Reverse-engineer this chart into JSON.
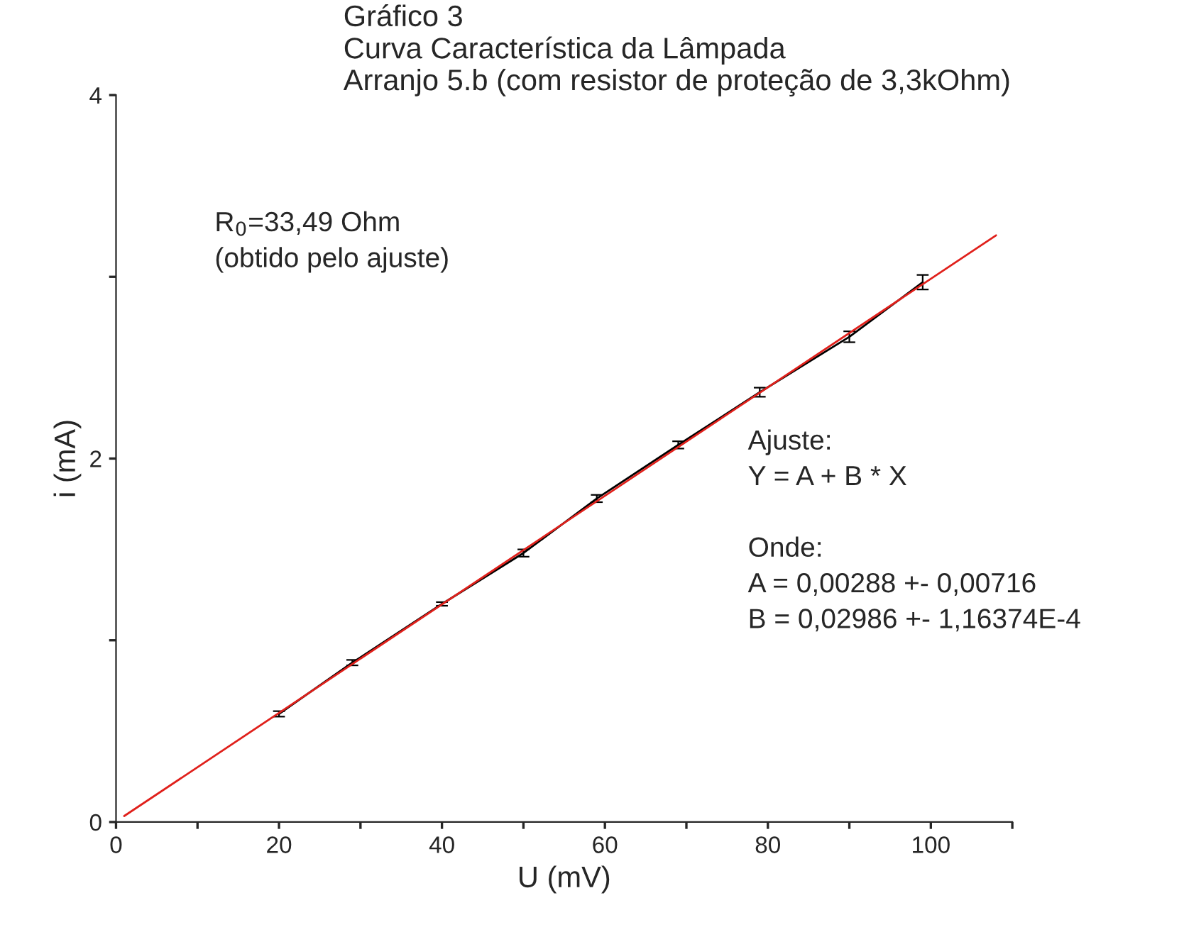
{
  "chart_data": {
    "type": "line",
    "title": "Gráfico 3\nCurva Característica da Lâmpada\nArranjo 5.b (com resistor de proteção de 3,3kOhm)",
    "xlabel": "U (mV)",
    "ylabel": "i (mA)",
    "series": [
      {
        "color": "#000000",
        "x": [
          20,
          29,
          40,
          50,
          59,
          69,
          79,
          90,
          99
        ],
        "values": [
          0.595,
          0.877,
          1.2,
          1.48,
          1.78,
          2.075,
          2.365,
          2.67,
          2.97
        ],
        "errors": [
          0.015,
          0.015,
          0.01,
          0.02,
          0.02,
          0.02,
          0.025,
          0.03,
          0.04
        ]
      },
      {
        "color": "#e0201b",
        "x": [
          1,
          108
        ],
        "values": [
          0.033,
          3.228
        ]
      }
    ],
    "xlim": [
      0,
      110
    ],
    "ylim": [
      0,
      4
    ],
    "xticks": [
      0,
      {
        "value": 10,
        "label": null
      },
      20,
      {
        "value": 30,
        "label": null
      },
      40,
      {
        "value": 50,
        "label": null
      },
      60,
      {
        "value": 70,
        "label": null
      },
      80,
      {
        "value": 90,
        "label": null
      },
      100,
      {
        "value": 110,
        "label": null
      }
    ],
    "yticks": [
      0,
      {
        "value": 1,
        "label": null
      },
      2,
      {
        "value": 3,
        "label": null
      },
      4
    ],
    "marker": "none",
    "line_style": "solid",
    "grid": false,
    "legend": false,
    "annotations": [
      "R$_{0}$=33,49 Ohm\n(obtido pelo ajuste)",
      "Ajuste:\nY = A + B * X\n\nOnde:\nA = 0,00288 +- 0,00716\nB = 0,02986 +- 1,16374E-4"
    ]
  }
}
